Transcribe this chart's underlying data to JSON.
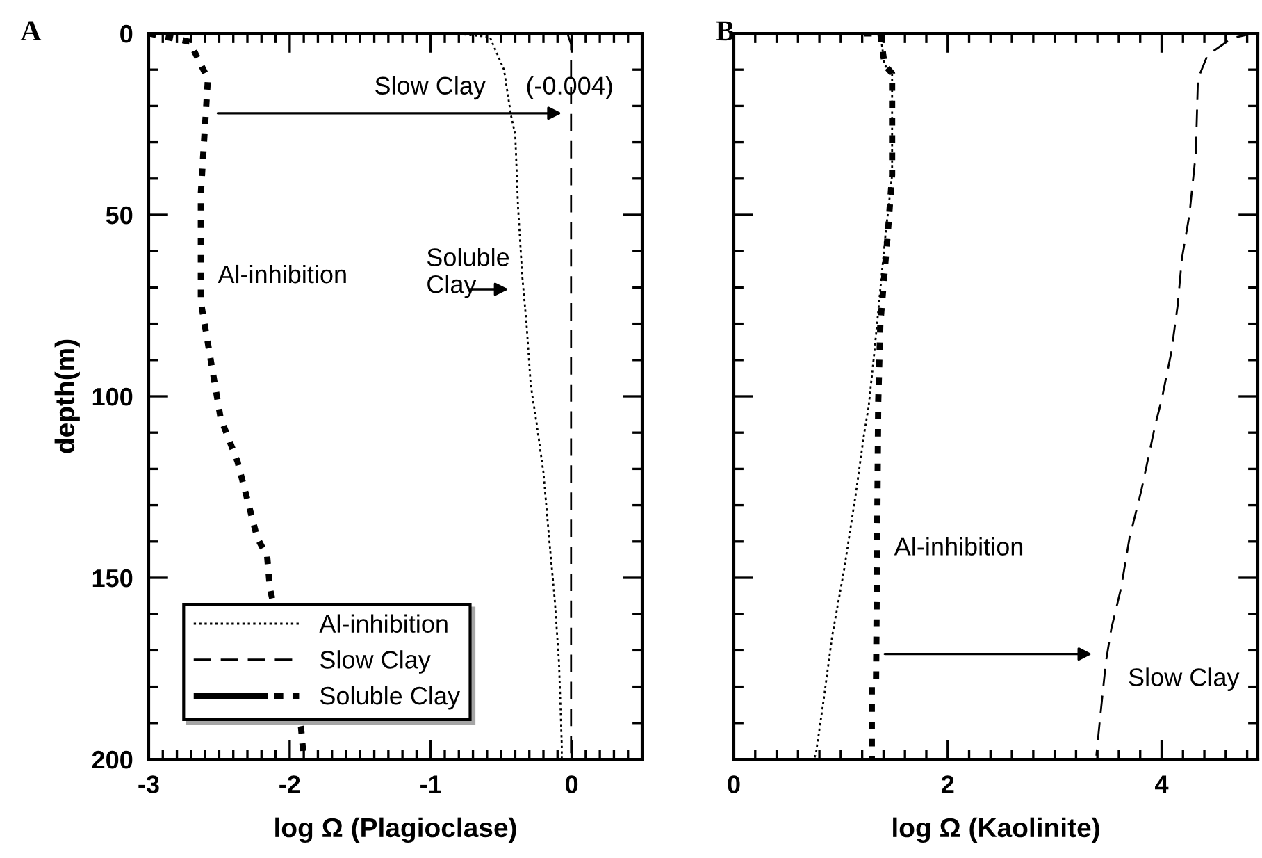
{
  "chart_data": [
    {
      "type": "line",
      "title": "A",
      "xlabel": "log Ω (Plagioclase)",
      "ylabel": "depth(m)",
      "xlim": [
        -3,
        0.5
      ],
      "xticks": [
        -3,
        -2,
        -1,
        0
      ],
      "ylim": [
        200,
        0
      ],
      "yticks": [
        0,
        50,
        100,
        150,
        200
      ],
      "grid": false,
      "legend": "bottom left",
      "series": [
        {
          "name": "Al-inhibition",
          "color": "#000000",
          "line_style": "dotted",
          "x": [
            -0.84,
            -0.58,
            -0.48,
            -0.43,
            -0.4,
            -0.38,
            -0.35,
            -0.32,
            -0.29,
            -0.25,
            -0.2,
            -0.16,
            -0.12,
            -0.09,
            -0.07,
            -0.07
          ],
          "values": [
            0,
            1,
            10,
            22.6,
            28,
            48,
            67,
            80,
            97,
            107,
            121,
            139,
            156,
            173,
            196,
            200
          ]
        },
        {
          "name": "Slow Clay",
          "color": "#000000",
          "line_style": "dashed",
          "x": [
            -0.03,
            -0.004,
            -0.004
          ],
          "values": [
            0,
            3,
            200
          ]
        },
        {
          "name": "Soluble Clay",
          "color": "#000000",
          "line_style": "dotted",
          "x": [
            -3,
            -2.71,
            -2.58,
            -2.63,
            -2.63,
            -2.49,
            -2.42,
            -2.37,
            -2.23,
            -2.16,
            -2.14,
            -1.92,
            -1.9
          ],
          "values": [
            0,
            2.3,
            12.5,
            44,
            74,
            106,
            113,
            118,
            139,
            144,
            153,
            191,
            200
          ]
        }
      ],
      "annotations": [
        "Slow Clay",
        {
          "text": "(-0.004)",
          "x": -0.004,
          "y": 15
        },
        {
          "text": "Al-inhibition",
          "x": -2.63,
          "y": 67
        },
        {
          "text": "Soluble\nClay",
          "x": -0.38,
          "y": 70.5
        }
      ]
    },
    {
      "type": "line",
      "title": "B",
      "xlabel": "log Ω (Kaolinite)",
      "xlim": [
        0,
        4.9
      ],
      "xticks": [
        0,
        2,
        4
      ],
      "ylim": [
        200,
        0
      ],
      "yticks": [
        0,
        50,
        100,
        150,
        200
      ],
      "tick_labels": "x",
      "grid": false,
      "legend": false,
      "series": [
        {
          "color": "#000000",
          "line_style": "dotted",
          "x": [
            1.22,
            1.37,
            1.41,
            1.48,
            1.48,
            1.42,
            1.31,
            1.26,
            1.22,
            1.14,
            1.03,
            0.92,
            0.84,
            0.77,
            0.75
          ],
          "values": [
            0,
            0,
            8.7,
            11,
            39,
            55,
            89,
            103,
            110,
            127,
            148,
            166,
            183.6,
            198,
            200
          ]
        },
        {
          "color": "#000000",
          "line_style": "dashed",
          "x": [
            4.86,
            4.66,
            4.43,
            4.34,
            4.32,
            4.26,
            4.19,
            4.15,
            4.09,
            4.0,
            3.94,
            3.81,
            3.7,
            3.62,
            3.53,
            3.48,
            3.42,
            3.39
          ],
          "values": [
            0,
            1.3,
            6,
            12.5,
            33,
            50,
            62,
            75,
            88,
            101,
            108,
            126,
            139,
            153,
            164,
            173,
            190,
            199
          ]
        },
        {
          "color": "#000000",
          "line_style": "dotted",
          "x": [
            1.22,
            1.37,
            1.41,
            1.48,
            1.48,
            1.44,
            1.37,
            1.35,
            1.33,
            1.29,
            1.29
          ],
          "values": [
            0,
            0,
            8.7,
            11,
            39,
            55,
            80,
            102,
            178.5,
            180,
            200
          ]
        }
      ],
      "annotations": [
        {
          "text": "Al-inhibition",
          "x": 1.29,
          "y": 142
        },
        {
          "text": "Slow Clay",
          "x": 3.44,
          "y": 171
        }
      ]
    }
  ]
}
